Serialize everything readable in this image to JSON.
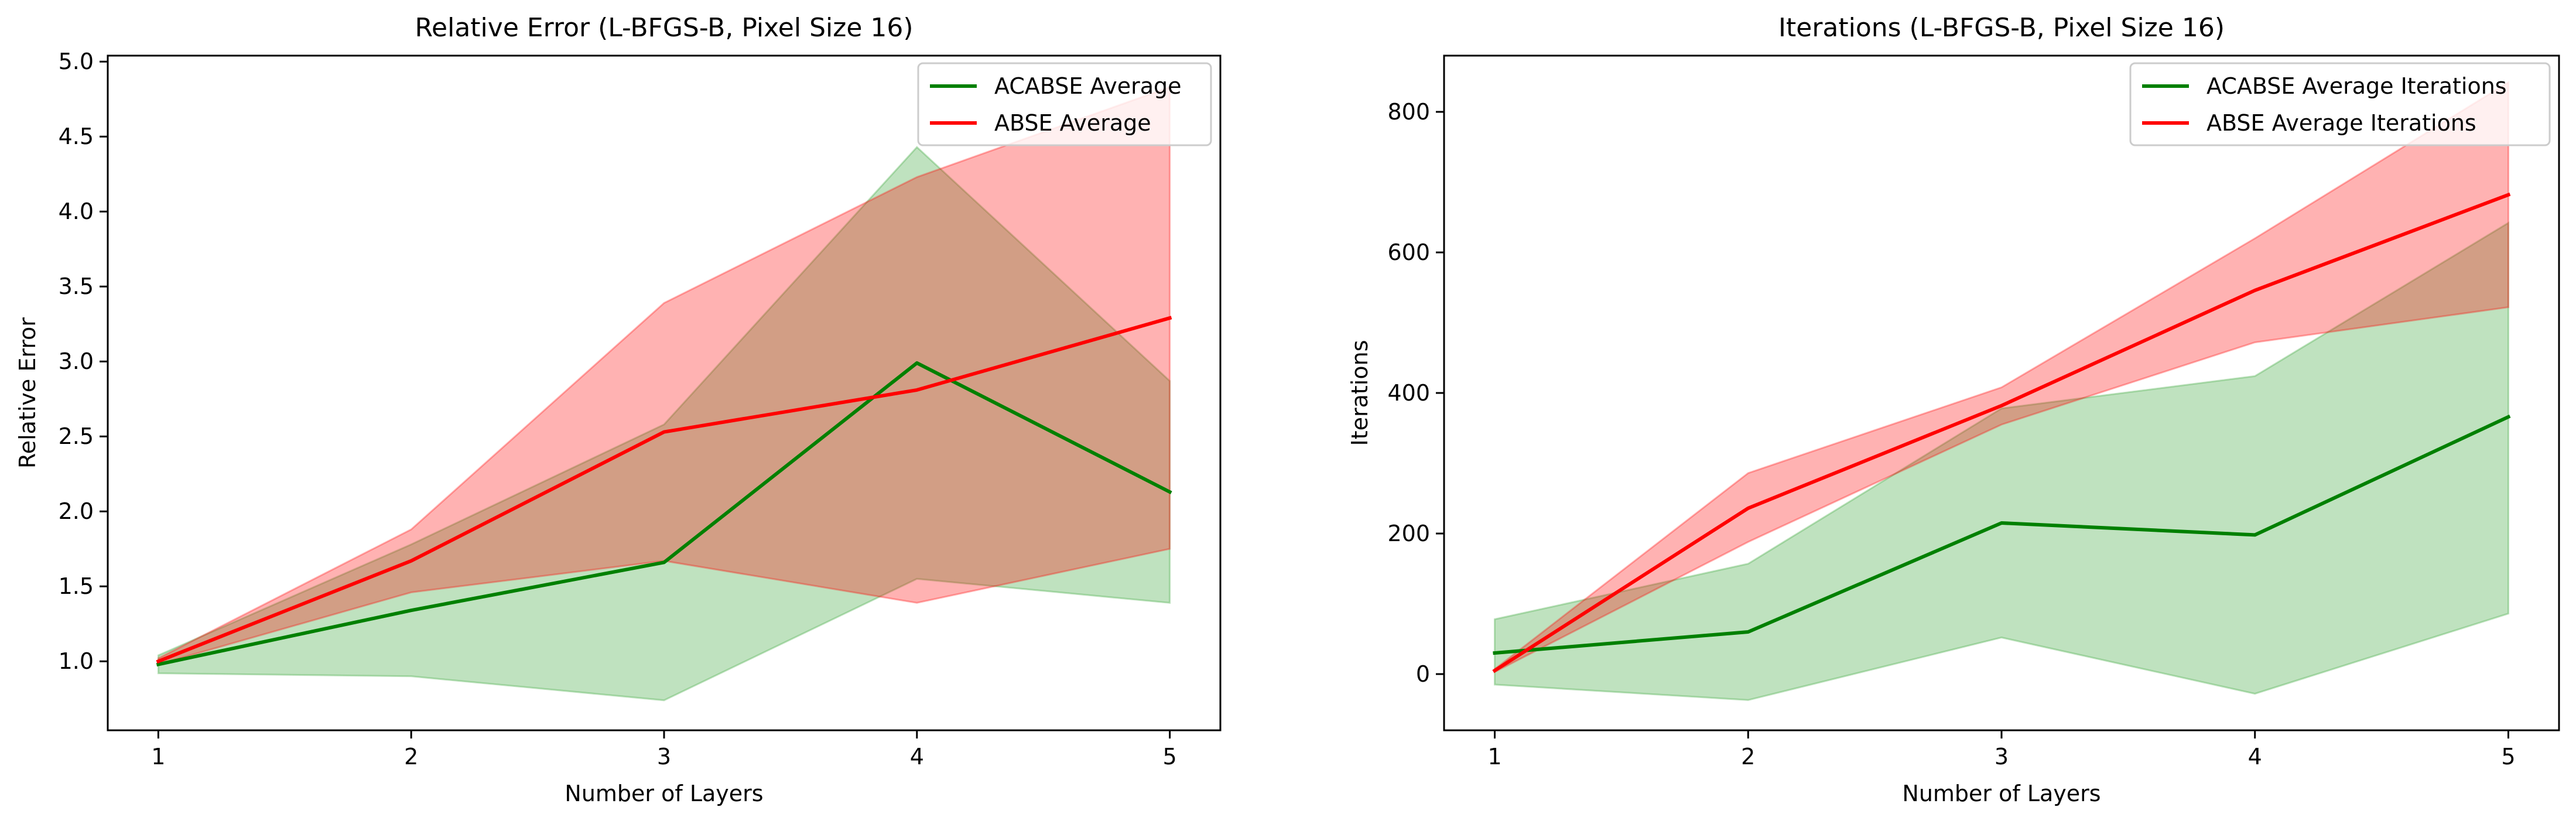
{
  "colors": {
    "acabse": "#008000",
    "abse": "#ff0000",
    "acabse_band": "#2ca02c",
    "abse_band": "#ff0000"
  },
  "chart_data": [
    {
      "type": "line",
      "title": "Relative Error (L-BFGS-B, Pixel Size 16)",
      "xlabel": "Number of Layers",
      "ylabel": "Relative Error",
      "x": [
        1,
        2,
        3,
        4,
        5
      ],
      "xticks": [
        "1",
        "2",
        "3",
        "4",
        "5"
      ],
      "xlim": [
        0.8,
        5.2
      ],
      "ylim": [
        0.54,
        5.04
      ],
      "yticks": [
        "1.0",
        "1.5",
        "2.0",
        "2.5",
        "3.0",
        "3.5",
        "4.0",
        "4.5",
        "5.0"
      ],
      "ytick_values": [
        1.0,
        1.5,
        2.0,
        2.5,
        3.0,
        3.5,
        4.0,
        4.5,
        5.0
      ],
      "legend_position": "upper right",
      "grid": false,
      "series": [
        {
          "name": "ACABSE Average",
          "color_key": "acabse",
          "values": [
            0.98,
            1.34,
            1.66,
            2.99,
            2.13
          ],
          "band_lower": [
            0.92,
            0.9,
            0.74,
            1.55,
            1.39
          ],
          "band_upper": [
            1.04,
            1.78,
            2.58,
            4.43,
            2.87
          ]
        },
        {
          "name": "ABSE Average",
          "color_key": "abse",
          "values": [
            1.0,
            1.67,
            2.53,
            2.81,
            3.29
          ],
          "band_lower": [
            0.98,
            1.46,
            1.67,
            1.39,
            1.75
          ],
          "band_upper": [
            1.02,
            1.88,
            3.39,
            4.23,
            4.83
          ]
        }
      ]
    },
    {
      "type": "line",
      "title": "Iterations (L-BFGS-B, Pixel Size 16)",
      "xlabel": "Number of Layers",
      "ylabel": "Iterations",
      "x": [
        1,
        2,
        3,
        4,
        5
      ],
      "xticks": [
        "1",
        "2",
        "3",
        "4",
        "5"
      ],
      "xlim": [
        0.8,
        5.2
      ],
      "ylim": [
        -80,
        880
      ],
      "yticks": [
        "0",
        "200",
        "400",
        "600",
        "800"
      ],
      "ytick_values": [
        0,
        200,
        400,
        600,
        800
      ],
      "legend_position": "upper right",
      "grid": false,
      "series": [
        {
          "name": "ACABSE Average Iterations",
          "color_key": "acabse",
          "values": [
            30,
            60,
            215,
            198,
            366
          ],
          "band_lower": [
            -15,
            -37,
            52,
            -28,
            86
          ],
          "band_upper": [
            78,
            157,
            378,
            424,
            642
          ]
        },
        {
          "name": "ABSE Average Iterations",
          "color_key": "abse",
          "values": [
            5,
            236,
            382,
            546,
            682
          ],
          "band_lower": [
            3,
            188,
            355,
            472,
            522
          ],
          "band_upper": [
            7,
            286,
            408,
            620,
            842
          ]
        }
      ]
    }
  ]
}
